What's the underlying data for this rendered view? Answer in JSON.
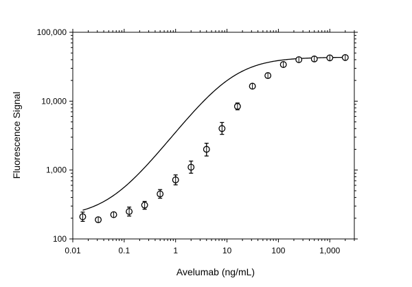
{
  "chart_data": {
    "type": "scatter",
    "title": "",
    "xlabel": "Avelumab (ng/mL)",
    "ylabel": "Fluorescence Signal",
    "x_scale": "log",
    "y_scale": "log",
    "xlim": [
      0.01,
      3000
    ],
    "ylim": [
      100,
      100000
    ],
    "x_ticks": [
      {
        "value": 0.01,
        "label": "0.01"
      },
      {
        "value": 0.1,
        "label": "0.1"
      },
      {
        "value": 1,
        "label": "1"
      },
      {
        "value": 10,
        "label": "10"
      },
      {
        "value": 100,
        "label": "100"
      },
      {
        "value": 1000,
        "label": "1,000"
      }
    ],
    "y_ticks": [
      {
        "value": 100,
        "label": "100"
      },
      {
        "value": 1000,
        "label": "1,000"
      },
      {
        "value": 10000,
        "label": "10,000"
      },
      {
        "value": 100000,
        "label": "100,000"
      }
    ],
    "grid": false,
    "legend": "none",
    "series": [
      {
        "marker": "open-circle",
        "x": [
          0.0156,
          0.0313,
          0.0625,
          0.125,
          0.25,
          0.5,
          1,
          2,
          4,
          8,
          16,
          31.25,
          62.5,
          125,
          250,
          500,
          1000,
          2000
        ],
        "y": [
          210,
          190,
          225,
          250,
          310,
          450,
          720,
          1100,
          2000,
          4000,
          8400,
          16500,
          23500,
          34000,
          40000,
          41000,
          42500,
          43000
        ],
        "err_low": [
          180,
          175,
          215,
          215,
          270,
          390,
          610,
          900,
          1600,
          3300,
          7500,
          15500,
          22000,
          32500,
          38500,
          39500,
          41000,
          41500
        ],
        "err_high": [
          245,
          200,
          235,
          290,
          350,
          520,
          850,
          1350,
          2450,
          4900,
          9400,
          17500,
          25500,
          35500,
          41500,
          42500,
          44000,
          44500
        ]
      }
    ],
    "fit_curve": {
      "model": "4PL",
      "bottom": 205,
      "top": 43500,
      "ec50": 12,
      "hill": 1.0
    },
    "colors": {
      "line": "#000000",
      "marker_fill": "#ffffff",
      "axis": "#000000",
      "background": "#ffffff"
    }
  }
}
